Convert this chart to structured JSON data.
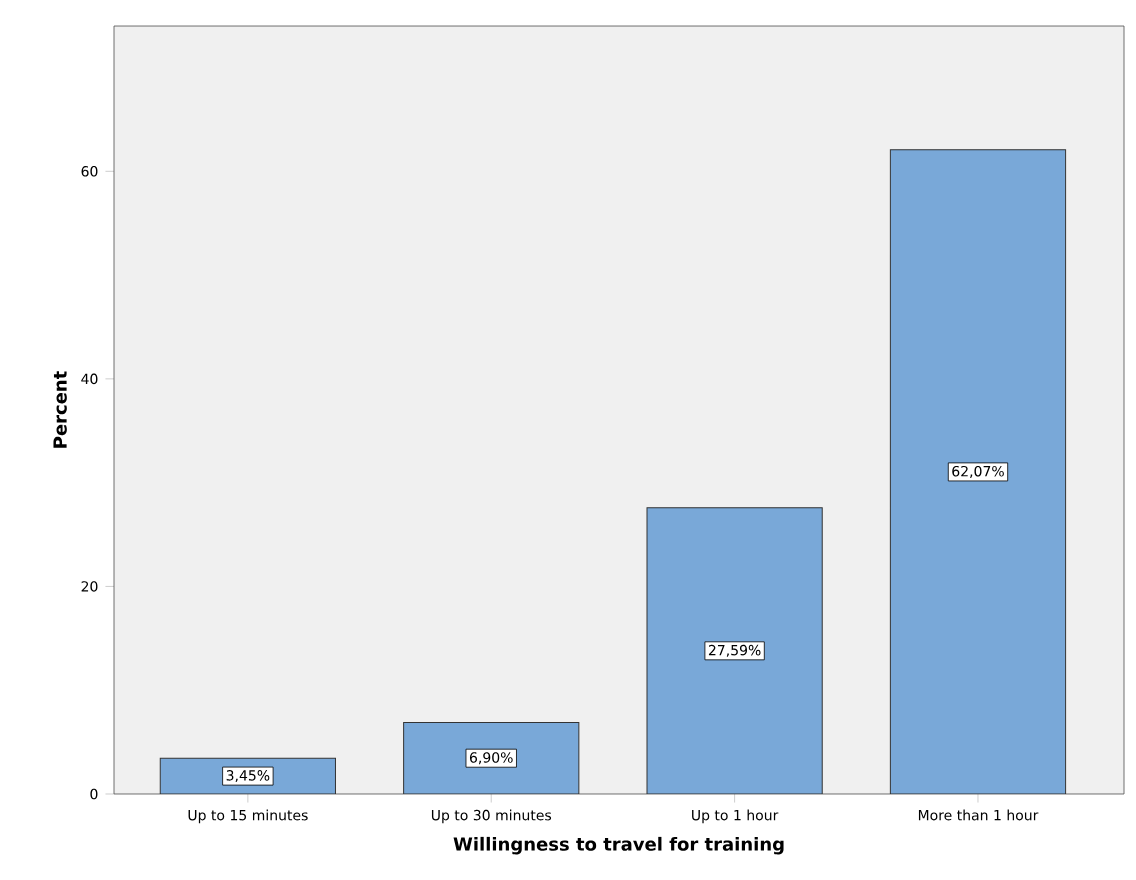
{
  "chart_data": {
    "type": "bar",
    "xlabel": "Willingness to travel for training",
    "ylabel": "Percent",
    "categories": [
      "Up to 15 minutes",
      "Up to 30 minutes",
      "Up to 1 hour",
      "More than 1 hour"
    ],
    "values": [
      3.45,
      6.9,
      27.59,
      62.07
    ],
    "value_labels": [
      "3,45%",
      "6,90%",
      "27,59%",
      "62,07%"
    ],
    "color": "#79a8d8",
    "ylim": [
      0,
      74
    ],
    "yticks": [
      0,
      20,
      40,
      60
    ]
  }
}
